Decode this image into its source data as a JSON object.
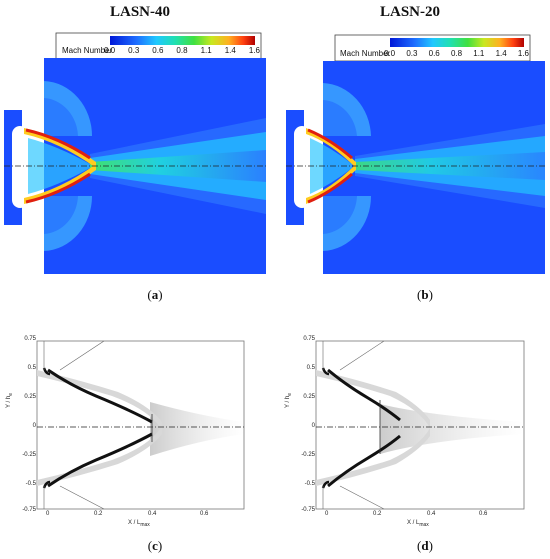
{
  "panels": [
    {
      "id": "a",
      "title": "LASN-40",
      "caption_letter": "a"
    },
    {
      "id": "b",
      "title": "LASN-20",
      "caption_letter": "b"
    },
    {
      "id": "c",
      "caption_letter": "c"
    },
    {
      "id": "d",
      "caption_letter": "d"
    }
  ],
  "legend": {
    "label": "Mach Number",
    "ticks": [
      "0.0",
      "0.3",
      "0.6",
      "0.8",
      "1.1",
      "1.4",
      "1.6"
    ]
  },
  "schlieren_axes": {
    "ylabel": "Y / h",
    "ylabel_sub": "e",
    "xlabel": "X / L",
    "xlabel_sub": "max",
    "yticks": [
      "0.75",
      "0.5",
      "0.25",
      "0",
      "-0.25",
      "-0.5",
      "-0.75"
    ],
    "xticks": [
      "0",
      "0.2",
      "0.4",
      "0.6"
    ]
  },
  "colors": {
    "mach_low": "#1e50ff",
    "mach_high": "#c00000",
    "frame": "#555555"
  }
}
